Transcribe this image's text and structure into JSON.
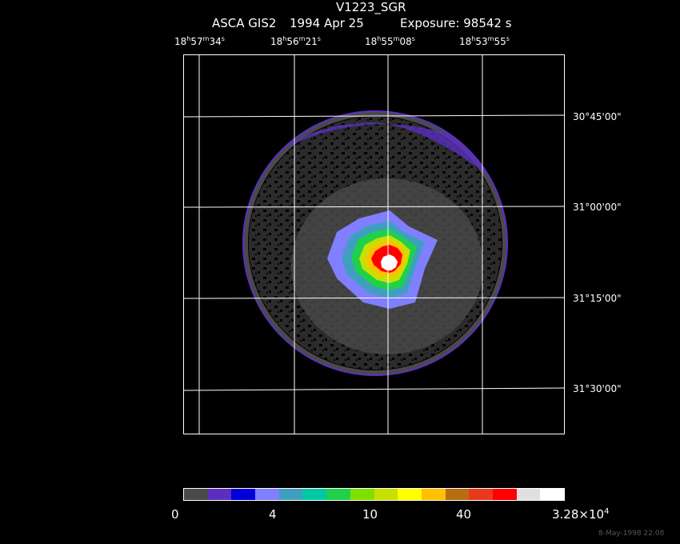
{
  "header": {
    "object": "V1223_SGR",
    "instrument": "ASCA GIS2",
    "date": "1994 Apr 25",
    "exposure": "Exposure: 98542 s"
  },
  "ra_ticks": [
    {
      "h": "18",
      "m": "57",
      "s": "34"
    },
    {
      "h": "18",
      "m": "56",
      "s": "21"
    },
    {
      "h": "18",
      "m": "55",
      "s": "08"
    },
    {
      "h": "18",
      "m": "53",
      "s": "55"
    }
  ],
  "dec_ticks": [
    "30°45'00\"",
    "31°00'00\"",
    "31°15'00\"",
    "31°30'00\""
  ],
  "colorbar": {
    "colors": [
      "#4a4a4a",
      "#5a2fc0",
      "#0000d8",
      "#7f7fff",
      "#3f9fbf",
      "#00c8a0",
      "#1fd04a",
      "#7fe000",
      "#c8e000",
      "#ffff00",
      "#ffc000",
      "#b86d10",
      "#e83a1a",
      "#ff0000",
      "#e0e0e0",
      "#ffffff"
    ],
    "labels": [
      "0",
      "4",
      "10",
      "40",
      "3.28×10",
      "4"
    ]
  },
  "image": {
    "description_colors": {
      "background": "#000000",
      "low": "#4a4a4a",
      "edge": "#5a2fc0",
      "peak": "#ffffff"
    }
  },
  "timestamp": "8-May-1998 22:08"
}
